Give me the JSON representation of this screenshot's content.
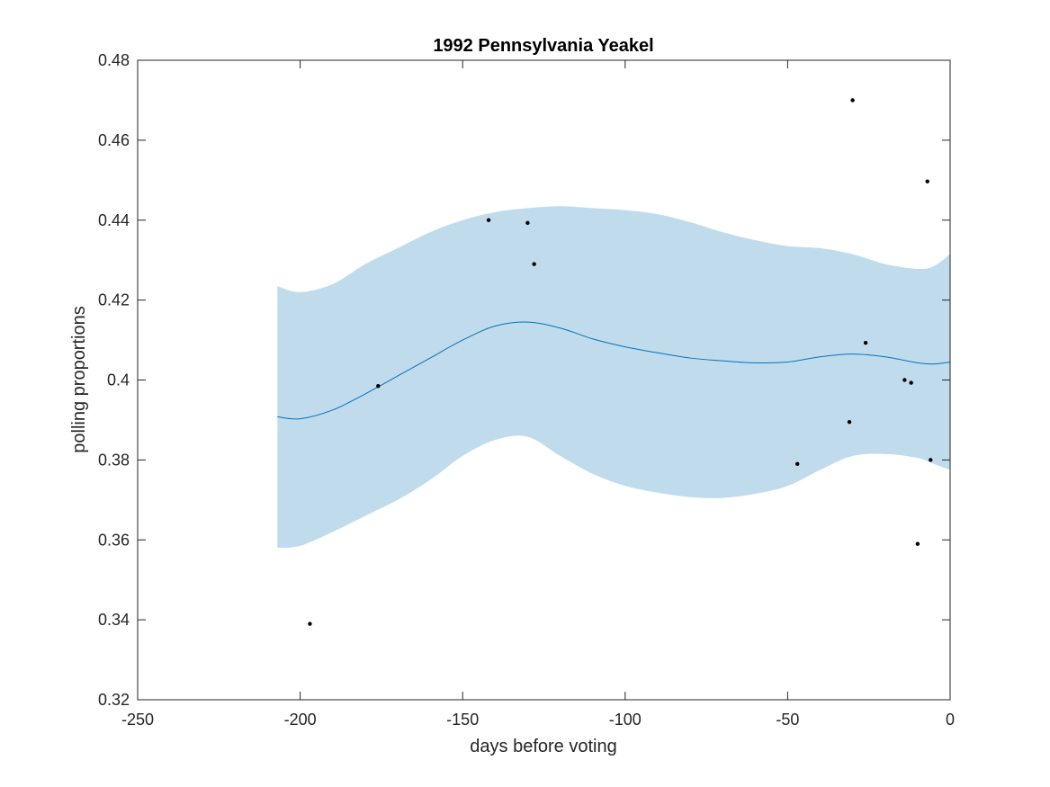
{
  "chart_data": {
    "type": "scatter",
    "title": "1992 Pennsylvania Yeakel",
    "xlabel": "days before voting",
    "ylabel": "polling proportions",
    "xlim": [
      -250,
      0
    ],
    "ylim": [
      0.32,
      0.48
    ],
    "xticks": [
      -250,
      -200,
      -150,
      -100,
      -50,
      0
    ],
    "xtick_labels": [
      "-250",
      "-200",
      "-150",
      "-100",
      "-50",
      "0"
    ],
    "yticks": [
      0.32,
      0.34,
      0.36,
      0.38,
      0.4,
      0.42,
      0.44,
      0.46,
      0.48
    ],
    "ytick_labels": [
      "0.32",
      "0.34",
      "0.36",
      "0.38",
      "0.4",
      "0.42",
      "0.44",
      "0.46",
      "0.48"
    ],
    "grid": false,
    "colors": {
      "band": "#c0dcec",
      "trend": "#0072bd",
      "points": "#000000",
      "axes": "#262626"
    },
    "series": [
      {
        "type": "area",
        "x": [
          -207,
          -200,
          -190,
          -180,
          -170,
          -160,
          -150,
          -140,
          -130,
          -120,
          -110,
          -100,
          -90,
          -80,
          -70,
          -60,
          -50,
          -40,
          -30,
          -20,
          -10,
          -5,
          0
        ],
        "upper": [
          0.4235,
          0.422,
          0.424,
          0.429,
          0.433,
          0.437,
          0.44,
          0.442,
          0.443,
          0.4435,
          0.443,
          0.4425,
          0.4415,
          0.4395,
          0.437,
          0.435,
          0.4335,
          0.433,
          0.4315,
          0.429,
          0.4278,
          0.4285,
          0.4315
        ],
        "lower": [
          0.358,
          0.3585,
          0.362,
          0.366,
          0.37,
          0.375,
          0.381,
          0.385,
          0.3858,
          0.381,
          0.3765,
          0.3735,
          0.3718,
          0.3707,
          0.3705,
          0.3715,
          0.3735,
          0.3775,
          0.381,
          0.3815,
          0.3805,
          0.379,
          0.3775
        ]
      },
      {
        "type": "line",
        "x": [
          -207,
          -200,
          -190,
          -180,
          -170,
          -160,
          -150,
          -140,
          -130,
          -120,
          -110,
          -100,
          -90,
          -80,
          -70,
          -60,
          -50,
          -40,
          -30,
          -20,
          -10,
          -5,
          0
        ],
        "y": [
          0.3908,
          0.3903,
          0.3925,
          0.3965,
          0.401,
          0.4055,
          0.41,
          0.4135,
          0.4145,
          0.413,
          0.4103,
          0.4083,
          0.4068,
          0.4055,
          0.4048,
          0.4043,
          0.4045,
          0.4058,
          0.4065,
          0.4058,
          0.4043,
          0.404,
          0.4045
        ]
      },
      {
        "type": "scatter",
        "x": [
          -197,
          -176,
          -142,
          -130,
          -128,
          -47,
          -31,
          -30,
          -26,
          -14,
          -12,
          -10,
          -7,
          -6
        ],
        "y": [
          0.339,
          0.3985,
          0.44,
          0.4393,
          0.429,
          0.379,
          0.3895,
          0.47,
          0.4093,
          0.4,
          0.3993,
          0.359,
          0.4497,
          0.38
        ]
      }
    ]
  }
}
